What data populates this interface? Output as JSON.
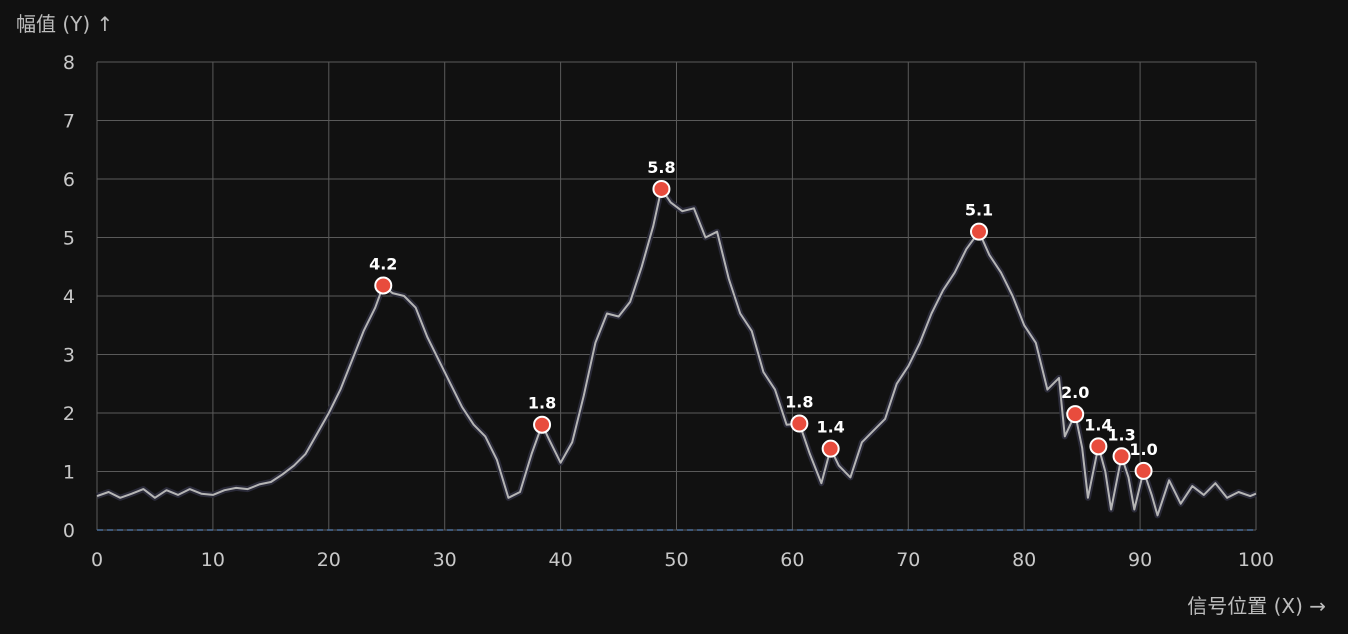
{
  "chart_data": {
    "type": "line",
    "xlabel": "信号位置 (X) →",
    "ylabel": "幅值 (Y) ↑",
    "xlim": [
      0,
      100
    ],
    "ylim": [
      0,
      8
    ],
    "x_ticks": [
      0,
      10,
      20,
      30,
      40,
      50,
      60,
      70,
      80,
      90,
      100
    ],
    "y_ticks": [
      0,
      1,
      2,
      3,
      4,
      5,
      6,
      7,
      8
    ],
    "grid": true,
    "baseline": 0,
    "series": [
      {
        "points": [
          [
            0,
            0.58
          ],
          [
            1,
            0.65
          ],
          [
            2,
            0.55
          ],
          [
            3,
            0.62
          ],
          [
            4,
            0.7
          ],
          [
            5,
            0.55
          ],
          [
            6,
            0.68
          ],
          [
            7,
            0.6
          ],
          [
            8,
            0.7
          ],
          [
            9,
            0.62
          ],
          [
            10,
            0.6
          ],
          [
            11,
            0.68
          ],
          [
            12,
            0.72
          ],
          [
            13,
            0.7
          ],
          [
            14,
            0.78
          ],
          [
            15,
            0.82
          ],
          [
            16,
            0.95
          ],
          [
            17,
            1.1
          ],
          [
            18,
            1.3
          ],
          [
            19,
            1.65
          ],
          [
            20,
            2.0
          ],
          [
            21,
            2.4
          ],
          [
            22,
            2.9
          ],
          [
            23,
            3.4
          ],
          [
            24,
            3.8
          ],
          [
            24.7,
            4.18
          ],
          [
            25.5,
            4.05
          ],
          [
            26.5,
            4.0
          ],
          [
            27.5,
            3.8
          ],
          [
            28.5,
            3.3
          ],
          [
            29.5,
            2.9
          ],
          [
            30.5,
            2.5
          ],
          [
            31.5,
            2.1
          ],
          [
            32.5,
            1.8
          ],
          [
            33.5,
            1.6
          ],
          [
            34.5,
            1.2
          ],
          [
            35.5,
            0.55
          ],
          [
            36.5,
            0.65
          ],
          [
            37.5,
            1.3
          ],
          [
            38.4,
            1.8
          ],
          [
            39,
            1.55
          ],
          [
            40,
            1.15
          ],
          [
            41,
            1.5
          ],
          [
            42,
            2.3
          ],
          [
            43,
            3.2
          ],
          [
            44,
            3.7
          ],
          [
            45,
            3.65
          ],
          [
            46,
            3.9
          ],
          [
            47,
            4.5
          ],
          [
            48,
            5.2
          ],
          [
            48.7,
            5.83
          ],
          [
            49.5,
            5.6
          ],
          [
            50.5,
            5.45
          ],
          [
            51.5,
            5.5
          ],
          [
            52.5,
            5.0
          ],
          [
            53.5,
            5.1
          ],
          [
            54.5,
            4.3
          ],
          [
            55.5,
            3.7
          ],
          [
            56.5,
            3.4
          ],
          [
            57.5,
            2.7
          ],
          [
            58.5,
            2.4
          ],
          [
            59.5,
            1.8
          ],
          [
            60.6,
            1.82
          ],
          [
            61.5,
            1.3
          ],
          [
            62.5,
            0.8
          ],
          [
            63.3,
            1.39
          ],
          [
            64,
            1.1
          ],
          [
            65,
            0.9
          ],
          [
            66,
            1.5
          ],
          [
            67,
            1.7
          ],
          [
            68,
            1.9
          ],
          [
            69,
            2.5
          ],
          [
            70,
            2.8
          ],
          [
            71,
            3.2
          ],
          [
            72,
            3.7
          ],
          [
            73,
            4.1
          ],
          [
            74,
            4.4
          ],
          [
            75,
            4.8
          ],
          [
            76.1,
            5.1
          ],
          [
            77,
            4.7
          ],
          [
            78,
            4.4
          ],
          [
            79,
            4.0
          ],
          [
            80,
            3.5
          ],
          [
            81,
            3.2
          ],
          [
            82,
            2.4
          ],
          [
            83,
            2.6
          ],
          [
            83.5,
            1.6
          ],
          [
            84.4,
            1.98
          ],
          [
            85,
            1.4
          ],
          [
            85.5,
            0.55
          ],
          [
            86.4,
            1.43
          ],
          [
            87,
            1.0
          ],
          [
            87.5,
            0.35
          ],
          [
            88.4,
            1.26
          ],
          [
            89,
            0.9
          ],
          [
            89.5,
            0.35
          ],
          [
            90.3,
            1.01
          ],
          [
            91,
            0.6
          ],
          [
            91.5,
            0.25
          ],
          [
            92.5,
            0.85
          ],
          [
            93.5,
            0.45
          ],
          [
            94.5,
            0.75
          ],
          [
            95.5,
            0.6
          ],
          [
            96.5,
            0.8
          ],
          [
            97.5,
            0.55
          ],
          [
            98.5,
            0.65
          ],
          [
            99.5,
            0.58
          ],
          [
            100,
            0.62
          ]
        ]
      }
    ],
    "peaks": [
      {
        "x": 24.7,
        "y": 4.18,
        "label": "4.2"
      },
      {
        "x": 38.4,
        "y": 1.8,
        "label": "1.8"
      },
      {
        "x": 48.7,
        "y": 5.83,
        "label": "5.8"
      },
      {
        "x": 60.6,
        "y": 1.82,
        "label": "1.8"
      },
      {
        "x": 63.3,
        "y": 1.39,
        "label": "1.4"
      },
      {
        "x": 76.1,
        "y": 5.1,
        "label": "5.1"
      },
      {
        "x": 84.4,
        "y": 1.98,
        "label": "2.0"
      },
      {
        "x": 86.4,
        "y": 1.43,
        "label": "1.4"
      },
      {
        "x": 88.4,
        "y": 1.26,
        "label": "1.3"
      },
      {
        "x": 90.3,
        "y": 1.01,
        "label": "1.0"
      }
    ],
    "colors": {
      "background": "#111111",
      "grid": "#5a5a5a",
      "line": "#b5b5b5",
      "peak_fill": "#e84c3d",
      "peak_stroke": "#ffffff",
      "baseline": "#4a6f9a",
      "text": "#c8c8c8"
    }
  }
}
